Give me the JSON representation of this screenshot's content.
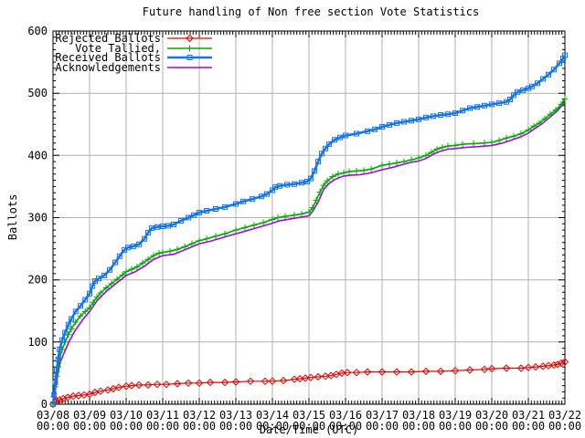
{
  "chart_data": {
    "type": "line",
    "title": "Future handling of Non free section Vote Statistics",
    "xlabel": "Date/Time (UTC)",
    "ylabel": "Ballots",
    "ylim": [
      0,
      600
    ],
    "yticks": [
      0,
      100,
      200,
      300,
      400,
      500,
      600
    ],
    "xticks": [
      "03/08",
      "03/09",
      "03/10",
      "03/11",
      "03/12",
      "03/13",
      "03/14",
      "03/15",
      "03/16",
      "03/17",
      "03/18",
      "03/19",
      "03/20",
      "03/21",
      "03/22"
    ],
    "xtick_second_line": "00:00",
    "x_days_span": 14,
    "grid": true,
    "grid_color": "#b0b0b0",
    "axis_color": "#000000",
    "background_color": "#ffffff",
    "legend_position": "top-left-inside",
    "series": [
      {
        "name": "Rejected Ballots",
        "color": "#ee0000",
        "marker": "diamond",
        "line_width": 1.2,
        "points": [
          [
            0,
            0
          ],
          [
            0.05,
            3
          ],
          [
            0.1,
            5
          ],
          [
            0.18,
            7
          ],
          [
            0.28,
            9
          ],
          [
            0.4,
            11
          ],
          [
            0.55,
            13
          ],
          [
            0.7,
            14
          ],
          [
            0.85,
            15
          ],
          [
            1.0,
            16
          ],
          [
            1.15,
            19
          ],
          [
            1.3,
            21
          ],
          [
            1.5,
            23
          ],
          [
            1.65,
            25
          ],
          [
            1.8,
            27
          ],
          [
            2.0,
            29
          ],
          [
            2.15,
            30
          ],
          [
            2.35,
            31
          ],
          [
            2.6,
            31
          ],
          [
            2.85,
            32
          ],
          [
            3.1,
            32
          ],
          [
            3.4,
            33
          ],
          [
            3.7,
            34
          ],
          [
            4.0,
            34
          ],
          [
            4.3,
            35
          ],
          [
            4.7,
            35
          ],
          [
            5.0,
            36
          ],
          [
            5.4,
            37
          ],
          [
            5.8,
            37
          ],
          [
            6.0,
            37
          ],
          [
            6.3,
            38
          ],
          [
            6.6,
            40
          ],
          [
            6.75,
            41
          ],
          [
            6.9,
            42
          ],
          [
            7.05,
            43
          ],
          [
            7.25,
            44
          ],
          [
            7.45,
            45
          ],
          [
            7.6,
            46
          ],
          [
            7.75,
            48
          ],
          [
            7.9,
            50
          ],
          [
            8.05,
            51
          ],
          [
            8.3,
            51
          ],
          [
            8.6,
            52
          ],
          [
            9.0,
            52
          ],
          [
            9.4,
            52
          ],
          [
            9.8,
            52
          ],
          [
            10.2,
            53
          ],
          [
            10.6,
            53
          ],
          [
            11.0,
            54
          ],
          [
            11.4,
            55
          ],
          [
            11.8,
            56
          ],
          [
            12.0,
            57
          ],
          [
            12.4,
            58
          ],
          [
            12.8,
            58
          ],
          [
            13.0,
            59
          ],
          [
            13.2,
            60
          ],
          [
            13.4,
            61
          ],
          [
            13.55,
            62
          ],
          [
            13.7,
            63
          ],
          [
            13.8,
            64
          ],
          [
            13.9,
            66
          ],
          [
            14.0,
            68
          ]
        ]
      },
      {
        "name": "Vote Tallied,",
        "color": "#00aa00",
        "marker": "plus",
        "line_width": 1.6,
        "points": [
          [
            0,
            0
          ],
          [
            0.03,
            12
          ],
          [
            0.06,
            28
          ],
          [
            0.1,
            45
          ],
          [
            0.14,
            60
          ],
          [
            0.18,
            74
          ],
          [
            0.25,
            88
          ],
          [
            0.33,
            100
          ],
          [
            0.42,
            112
          ],
          [
            0.5,
            121
          ],
          [
            0.62,
            132
          ],
          [
            0.75,
            142
          ],
          [
            0.88,
            149
          ],
          [
            1.0,
            155
          ],
          [
            1.1,
            164
          ],
          [
            1.2,
            172
          ],
          [
            1.3,
            179
          ],
          [
            1.45,
            187
          ],
          [
            1.6,
            194
          ],
          [
            1.75,
            201
          ],
          [
            1.9,
            208
          ],
          [
            2.0,
            213
          ],
          [
            2.15,
            217
          ],
          [
            2.3,
            221
          ],
          [
            2.45,
            227
          ],
          [
            2.6,
            233
          ],
          [
            2.75,
            239
          ],
          [
            2.9,
            243
          ],
          [
            3.0,
            244
          ],
          [
            3.2,
            246
          ],
          [
            3.4,
            249
          ],
          [
            3.6,
            253
          ],
          [
            3.8,
            258
          ],
          [
            4.0,
            263
          ],
          [
            4.2,
            266
          ],
          [
            4.45,
            270
          ],
          [
            4.7,
            274
          ],
          [
            5.0,
            280
          ],
          [
            5.25,
            284
          ],
          [
            5.5,
            288
          ],
          [
            5.75,
            292
          ],
          [
            6.0,
            297
          ],
          [
            6.15,
            300
          ],
          [
            6.35,
            302
          ],
          [
            6.6,
            304
          ],
          [
            6.8,
            306
          ],
          [
            7.0,
            309
          ],
          [
            7.1,
            316
          ],
          [
            7.2,
            328
          ],
          [
            7.3,
            341
          ],
          [
            7.4,
            352
          ],
          [
            7.5,
            359
          ],
          [
            7.65,
            366
          ],
          [
            7.8,
            370
          ],
          [
            7.95,
            372
          ],
          [
            8.1,
            374
          ],
          [
            8.3,
            375
          ],
          [
            8.5,
            376
          ],
          [
            8.7,
            378
          ],
          [
            9.0,
            384
          ],
          [
            9.2,
            386
          ],
          [
            9.4,
            388
          ],
          [
            9.6,
            390
          ],
          [
            9.8,
            393
          ],
          [
            10.0,
            396
          ],
          [
            10.2,
            400
          ],
          [
            10.35,
            405
          ],
          [
            10.5,
            410
          ],
          [
            10.65,
            413
          ],
          [
            10.8,
            415
          ],
          [
            11.0,
            416
          ],
          [
            11.2,
            418
          ],
          [
            11.5,
            419
          ],
          [
            11.8,
            420
          ],
          [
            12.0,
            421
          ],
          [
            12.2,
            424
          ],
          [
            12.4,
            428
          ],
          [
            12.6,
            431
          ],
          [
            12.8,
            435
          ],
          [
            13.0,
            441
          ],
          [
            13.15,
            447
          ],
          [
            13.3,
            452
          ],
          [
            13.45,
            459
          ],
          [
            13.6,
            466
          ],
          [
            13.75,
            473
          ],
          [
            13.9,
            482
          ],
          [
            14.0,
            491
          ]
        ]
      },
      {
        "name": "Received Ballots",
        "color": "#1475f0",
        "marker": "square",
        "line_width": 2.6,
        "points": [
          [
            0,
            0
          ],
          [
            0.03,
            15
          ],
          [
            0.06,
            35
          ],
          [
            0.1,
            55
          ],
          [
            0.14,
            72
          ],
          [
            0.18,
            88
          ],
          [
            0.25,
            103
          ],
          [
            0.33,
            115
          ],
          [
            0.42,
            128
          ],
          [
            0.5,
            137
          ],
          [
            0.62,
            149
          ],
          [
            0.75,
            158
          ],
          [
            0.88,
            168
          ],
          [
            1.0,
            178
          ],
          [
            1.08,
            190
          ],
          [
            1.15,
            198
          ],
          [
            1.25,
            202
          ],
          [
            1.4,
            207
          ],
          [
            1.55,
            216
          ],
          [
            1.7,
            228
          ],
          [
            1.82,
            238
          ],
          [
            1.95,
            248
          ],
          [
            2.05,
            252
          ],
          [
            2.2,
            254
          ],
          [
            2.35,
            257
          ],
          [
            2.5,
            266
          ],
          [
            2.6,
            276
          ],
          [
            2.7,
            283
          ],
          [
            2.85,
            285
          ],
          [
            3.0,
            286
          ],
          [
            3.15,
            287
          ],
          [
            3.3,
            289
          ],
          [
            3.5,
            295
          ],
          [
            3.7,
            300
          ],
          [
            3.85,
            304
          ],
          [
            4.0,
            308
          ],
          [
            4.2,
            311
          ],
          [
            4.45,
            314
          ],
          [
            4.7,
            317
          ],
          [
            5.0,
            322
          ],
          [
            5.2,
            326
          ],
          [
            5.45,
            330
          ],
          [
            5.7,
            334
          ],
          [
            5.85,
            338
          ],
          [
            6.0,
            344
          ],
          [
            6.08,
            349
          ],
          [
            6.2,
            351
          ],
          [
            6.4,
            353
          ],
          [
            6.6,
            354
          ],
          [
            6.8,
            356
          ],
          [
            6.95,
            358
          ],
          [
            7.05,
            363
          ],
          [
            7.15,
            375
          ],
          [
            7.25,
            390
          ],
          [
            7.35,
            403
          ],
          [
            7.45,
            411
          ],
          [
            7.55,
            418
          ],
          [
            7.7,
            425
          ],
          [
            7.85,
            429
          ],
          [
            8.0,
            432
          ],
          [
            8.3,
            435
          ],
          [
            8.6,
            439
          ],
          [
            8.8,
            442
          ],
          [
            9.0,
            446
          ],
          [
            9.2,
            449
          ],
          [
            9.4,
            452
          ],
          [
            9.6,
            454
          ],
          [
            9.8,
            456
          ],
          [
            10.0,
            458
          ],
          [
            10.2,
            461
          ],
          [
            10.4,
            463
          ],
          [
            10.6,
            465
          ],
          [
            10.8,
            466
          ],
          [
            11.0,
            468
          ],
          [
            11.2,
            472
          ],
          [
            11.4,
            476
          ],
          [
            11.6,
            478
          ],
          [
            11.8,
            480
          ],
          [
            12.0,
            482
          ],
          [
            12.2,
            484
          ],
          [
            12.4,
            486
          ],
          [
            12.5,
            490
          ],
          [
            12.6,
            497
          ],
          [
            12.7,
            502
          ],
          [
            12.85,
            505
          ],
          [
            13.0,
            508
          ],
          [
            13.1,
            511
          ],
          [
            13.25,
            516
          ],
          [
            13.4,
            523
          ],
          [
            13.55,
            530
          ],
          [
            13.7,
            538
          ],
          [
            13.85,
            548
          ],
          [
            13.95,
            556
          ],
          [
            14.0,
            561
          ]
        ]
      },
      {
        "name": "Acknowledgements",
        "color": "#aa00ee",
        "marker": "none",
        "line_width": 1.6,
        "points": [
          [
            0,
            0
          ],
          [
            0.04,
            10
          ],
          [
            0.08,
            30
          ],
          [
            0.14,
            52
          ],
          [
            0.2,
            68
          ],
          [
            0.3,
            82
          ],
          [
            0.45,
            102
          ],
          [
            0.6,
            118
          ],
          [
            0.8,
            135
          ],
          [
            1.0,
            149
          ],
          [
            1.2,
            166
          ],
          [
            1.45,
            181
          ],
          [
            1.7,
            193
          ],
          [
            1.9,
            202
          ],
          [
            2.0,
            207
          ],
          [
            2.25,
            213
          ],
          [
            2.5,
            222
          ],
          [
            2.75,
            233
          ],
          [
            3.0,
            239
          ],
          [
            3.3,
            241
          ],
          [
            3.6,
            248
          ],
          [
            3.8,
            253
          ],
          [
            4.0,
            258
          ],
          [
            4.3,
            262
          ],
          [
            4.7,
            269
          ],
          [
            5.0,
            274
          ],
          [
            5.3,
            279
          ],
          [
            5.6,
            284
          ],
          [
            6.0,
            291
          ],
          [
            6.2,
            295
          ],
          [
            6.5,
            298
          ],
          [
            6.8,
            301
          ],
          [
            7.0,
            303
          ],
          [
            7.1,
            310
          ],
          [
            7.25,
            325
          ],
          [
            7.4,
            345
          ],
          [
            7.55,
            355
          ],
          [
            7.7,
            361
          ],
          [
            7.9,
            366
          ],
          [
            8.1,
            368
          ],
          [
            8.4,
            369
          ],
          [
            8.7,
            372
          ],
          [
            9.0,
            377
          ],
          [
            9.3,
            381
          ],
          [
            9.6,
            386
          ],
          [
            9.8,
            389
          ],
          [
            10.0,
            391
          ],
          [
            10.2,
            395
          ],
          [
            10.4,
            402
          ],
          [
            10.6,
            407
          ],
          [
            10.8,
            410
          ],
          [
            11.0,
            411
          ],
          [
            11.3,
            413
          ],
          [
            11.6,
            414
          ],
          [
            12.0,
            416
          ],
          [
            12.3,
            420
          ],
          [
            12.6,
            426
          ],
          [
            12.8,
            430
          ],
          [
            13.0,
            436
          ],
          [
            13.2,
            444
          ],
          [
            13.4,
            452
          ],
          [
            13.6,
            462
          ],
          [
            13.8,
            472
          ],
          [
            13.95,
            483
          ],
          [
            14.0,
            488
          ]
        ]
      }
    ]
  }
}
